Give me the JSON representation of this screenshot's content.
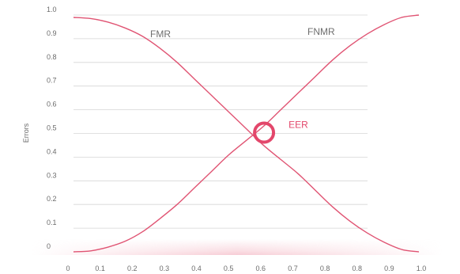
{
  "chart_data": {
    "type": "line",
    "title": "",
    "xlabel": "",
    "ylabel": "Errors",
    "x_ticks": [
      "0",
      "0.1",
      "0.2",
      "0.3",
      "0.4",
      "0.5",
      "0.6",
      "0.7",
      "0.8",
      "0.8",
      "0.9",
      "1.0"
    ],
    "y_ticks": [
      "0",
      "0.1",
      "0.2",
      "0.3",
      "0.4",
      "0.5",
      "0.6",
      "0.7",
      "0.8",
      "0.9",
      "1.0"
    ],
    "xlim": [
      0,
      1
    ],
    "ylim": [
      0,
      1
    ],
    "grid": "horizontal",
    "series": [
      {
        "name": "FMR",
        "x": [
          0,
          0.05,
          0.1,
          0.15,
          0.2,
          0.25,
          0.3,
          0.35,
          0.4,
          0.45,
          0.5,
          0.55,
          0.6,
          0.65,
          0.7,
          0.75,
          0.8,
          0.85,
          0.9,
          0.95,
          1.0
        ],
        "values": [
          0.99,
          0.985,
          0.97,
          0.945,
          0.91,
          0.86,
          0.8,
          0.73,
          0.66,
          0.59,
          0.52,
          0.45,
          0.39,
          0.33,
          0.26,
          0.19,
          0.13,
          0.08,
          0.04,
          0.01,
          0.0
        ]
      },
      {
        "name": "FNMR",
        "x": [
          0,
          0.05,
          0.1,
          0.15,
          0.2,
          0.25,
          0.3,
          0.35,
          0.4,
          0.45,
          0.5,
          0.55,
          0.6,
          0.65,
          0.7,
          0.75,
          0.8,
          0.85,
          0.9,
          0.95,
          1.0
        ],
        "values": [
          0.0,
          0.004,
          0.02,
          0.045,
          0.085,
          0.14,
          0.2,
          0.27,
          0.34,
          0.41,
          0.47,
          0.53,
          0.6,
          0.67,
          0.74,
          0.81,
          0.87,
          0.92,
          0.96,
          0.99,
          1.0
        ]
      }
    ],
    "annotations": [
      {
        "label": "EER",
        "x": 0.57,
        "y": 0.5
      }
    ],
    "colors": {
      "curve": "#e05473",
      "marker": "#e3476b",
      "label": "#e3476b",
      "grid": "#d6d6d6",
      "text": "#6b6b6b",
      "baseline_glow": "#f6c6d0"
    }
  }
}
